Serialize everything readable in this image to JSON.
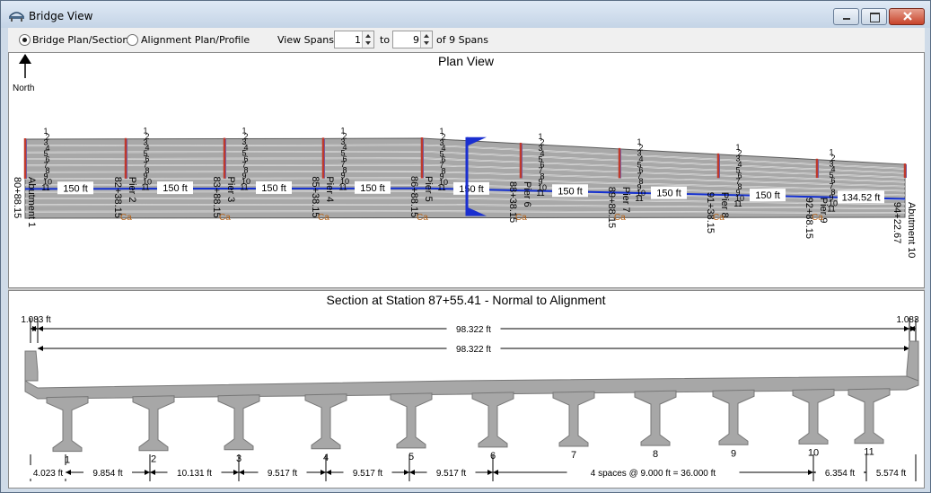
{
  "window": {
    "title": "Bridge View"
  },
  "toolbar": {
    "mode_plan_section": "Bridge Plan/Section",
    "mode_alignment": "Alignment Plan/Profile",
    "view_spans_label": "View Spans",
    "span_from": "1",
    "to_label": "to",
    "span_to": "9",
    "of_spans": "of 9 Spans"
  },
  "plan": {
    "title": "Plan View",
    "north": "North",
    "supports": [
      {
        "name": "Abutment 1",
        "station": "80+88.15"
      },
      {
        "name": "Pier 2",
        "station": "82+38.15"
      },
      {
        "name": "Pier 3",
        "station": "83+88.15"
      },
      {
        "name": "Pier 4",
        "station": "85+38.15"
      },
      {
        "name": "Pier 5",
        "station": "86+88.15"
      },
      {
        "name": "Pier 6",
        "station": "88+38.15"
      },
      {
        "name": "Pier 7",
        "station": "89+88.15"
      },
      {
        "name": "Pier 8",
        "station": "91+38.15"
      },
      {
        "name": "Pier 9",
        "station": "92+88.15"
      },
      {
        "name": "Abutment 10",
        "station": "94+22.67"
      }
    ],
    "pier_tag": "Ca",
    "spans": [
      "150 ft",
      "150 ft",
      "150 ft",
      "150 ft",
      "150 ft",
      "150 ft",
      "150 ft",
      "150 ft",
      "134.52 ft"
    ],
    "girder_numbers": [
      "1",
      "2",
      "3",
      "4",
      "5",
      "6",
      "7",
      "8",
      "9",
      "10",
      "11"
    ],
    "colors": {
      "deck": "#a8a8a8",
      "line": "#5a5a5a",
      "alignment": "#1430d0",
      "pier": "#c0392b",
      "section_cut": "#1a2fd0"
    }
  },
  "section": {
    "title": "Section at Station 87+55.41 - Normal to Alignment",
    "left_overhang": "1.083 ft",
    "right_overhang": "1.083",
    "top_width": "98.322 ft",
    "inner_width": "98.322 ft",
    "girder_labels": [
      "1",
      "2",
      "3",
      "4",
      "5",
      "6",
      "7",
      "8",
      "9",
      "10",
      "11"
    ],
    "spacing_labels": [
      "4.023 ft",
      "9.854 ft",
      "10.131 ft",
      "9.517 ft",
      "9.517 ft",
      "9.517 ft",
      "4 spaces @ 9.000 ft = 36.000 ft",
      "6.354 ft",
      "5.574 ft"
    ],
    "colors": {
      "concrete": "#a7a7a7",
      "concrete_dark": "#777777"
    }
  }
}
